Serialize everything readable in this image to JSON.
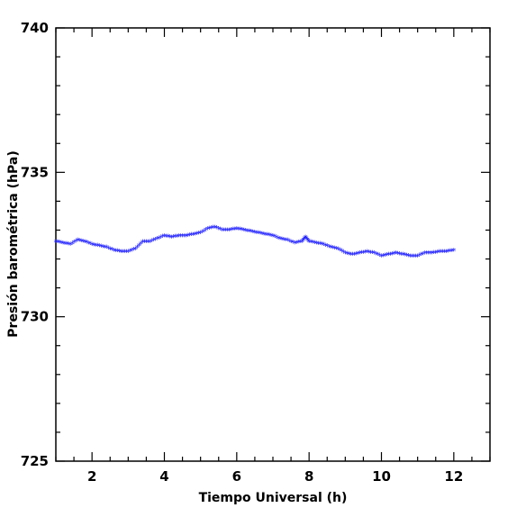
{
  "chart_data": {
    "type": "scatter",
    "xlabel": "Tiempo Universal (h)",
    "ylabel": "Presión barométrica (hPa)",
    "xlim": [
      1,
      13
    ],
    "ylim": [
      725,
      740
    ],
    "xticks": [
      2,
      4,
      6,
      8,
      10,
      12
    ],
    "xtick_labels": [
      "2",
      "4",
      "6",
      "8",
      "10",
      "12"
    ],
    "yticks": [
      725,
      730,
      735,
      740
    ],
    "ytick_labels": [
      "725",
      "730",
      "735",
      "740"
    ],
    "grid": false,
    "marker": "*",
    "color": "#1a1aff",
    "series": [
      {
        "x": [
          1.0,
          1.2,
          1.4,
          1.6,
          1.8,
          2.0,
          2.2,
          2.4,
          2.6,
          2.8,
          3.0,
          3.2,
          3.4,
          3.6,
          3.8,
          4.0,
          4.2,
          4.4,
          4.6,
          4.8,
          5.0,
          5.2,
          5.4,
          5.6,
          5.8,
          6.0,
          6.2,
          6.4,
          6.6,
          6.8,
          7.0,
          7.2,
          7.4,
          7.6,
          7.8,
          7.9,
          8.0,
          8.2,
          8.4,
          8.6,
          8.8,
          9.0,
          9.2,
          9.4,
          9.6,
          9.8,
          10.0,
          10.2,
          10.4,
          10.6,
          10.8,
          11.0,
          11.2,
          11.4,
          11.6,
          11.8,
          12.0
        ],
        "y": [
          732.6,
          732.55,
          732.5,
          732.65,
          732.6,
          732.5,
          732.45,
          732.4,
          732.3,
          732.25,
          732.25,
          732.35,
          732.6,
          732.6,
          732.7,
          732.8,
          732.75,
          732.8,
          732.8,
          732.85,
          732.9,
          733.05,
          733.1,
          733.0,
          733.0,
          733.05,
          733.0,
          732.95,
          732.9,
          732.85,
          732.8,
          732.7,
          732.65,
          732.55,
          732.6,
          732.75,
          732.6,
          732.55,
          732.5,
          732.4,
          732.35,
          732.2,
          732.15,
          732.2,
          732.25,
          732.2,
          732.1,
          732.15,
          732.2,
          732.15,
          732.1,
          732.1,
          732.2,
          732.2,
          732.25,
          732.25,
          732.3
        ]
      }
    ]
  }
}
